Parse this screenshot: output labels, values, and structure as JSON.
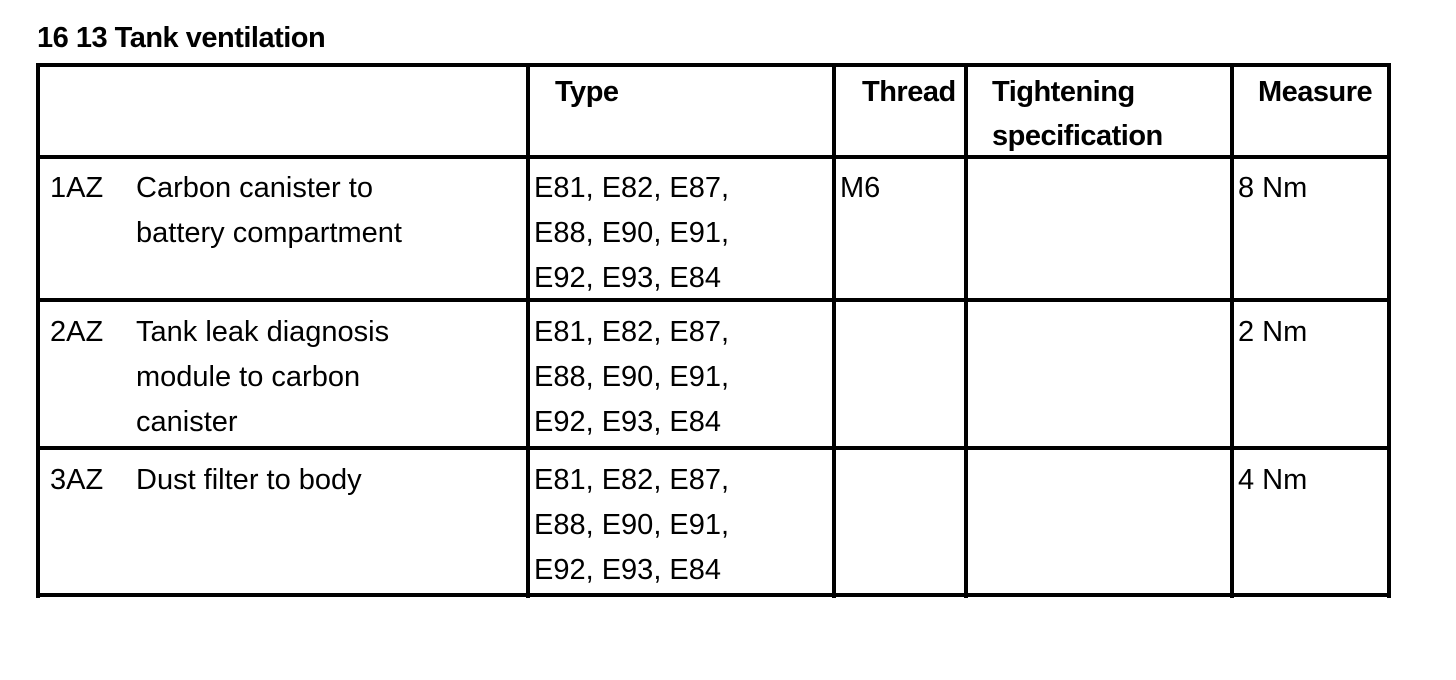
{
  "title": "16 13 Tank ventilation",
  "table": {
    "headers": [
      "",
      "Type",
      "Thread",
      "Tightening specification",
      "Measure"
    ],
    "header_lines": {
      "tightening": [
        "Tightening",
        "specification"
      ]
    },
    "rows": [
      {
        "id": "1AZ",
        "description": [
          "Carbon canister to",
          "battery compartment"
        ],
        "type": [
          "E81, E82, E87,",
          "E88, E90, E91,",
          "E92, E93, E84"
        ],
        "thread": "M6",
        "tightening": "",
        "measure": "8 Nm"
      },
      {
        "id": "2AZ",
        "description": [
          "Tank leak diagnosis",
          "module to carbon",
          "canister"
        ],
        "type": [
          "E81, E82, E87,",
          "E88, E90, E91,",
          "E92, E93, E84"
        ],
        "thread": "",
        "tightening": "",
        "measure": "2 Nm"
      },
      {
        "id": "3AZ",
        "description": [
          "Dust filter to body"
        ],
        "type": [
          "E81, E82, E87,",
          "E88, E90, E91,",
          "E92, E93, E84"
        ],
        "thread": "",
        "tightening": "",
        "measure": "4 Nm"
      }
    ]
  }
}
